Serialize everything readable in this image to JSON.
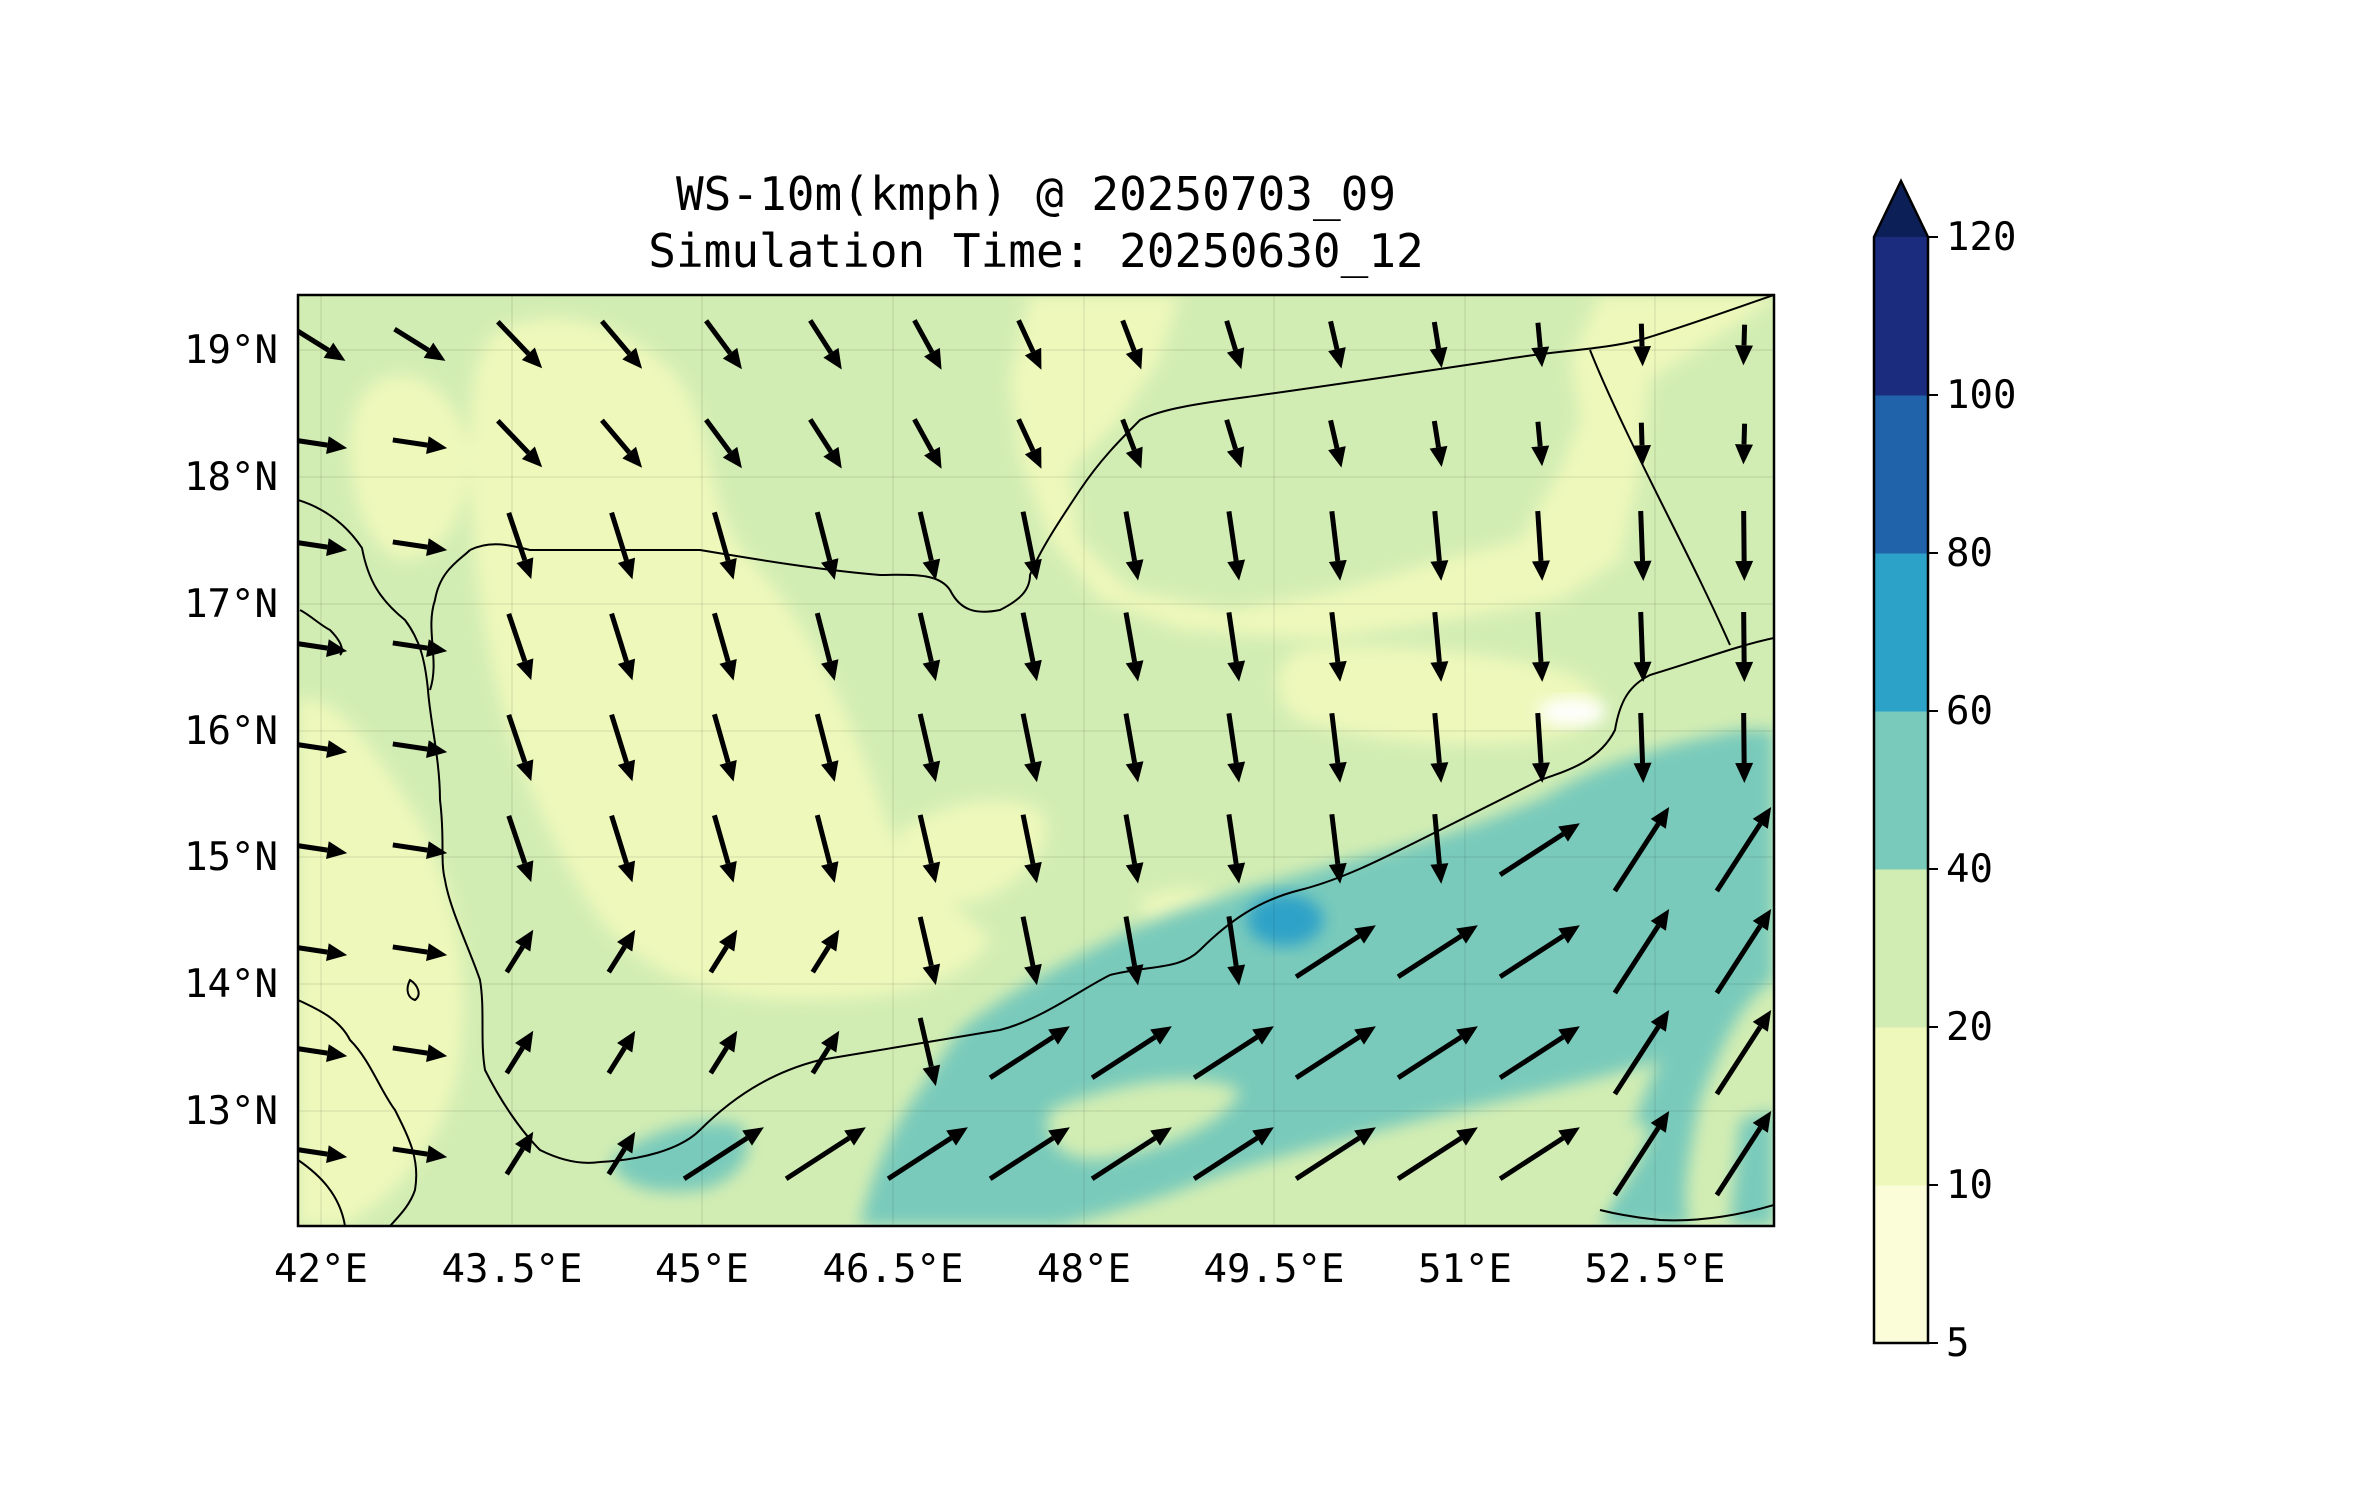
{
  "title": {
    "line1": "WS-10m(kmph) @ 20250703_09",
    "line2": "Simulation Time: 20250630_12"
  },
  "map": {
    "lon_range": [
      41.8,
      53.4
    ],
    "lat_range": [
      12.1,
      19.45
    ],
    "lon_ticks": [
      "42°E",
      "43.5°E",
      "45°E",
      "46.5°E",
      "48°E",
      "49.5°E",
      "51°E",
      "52.5°E"
    ],
    "lat_ticks": [
      "13°N",
      "14°N",
      "15°N",
      "16°N",
      "17°N",
      "18°N",
      "19°N"
    ],
    "gridlines": true
  },
  "colorbar": {
    "levels": [
      5,
      10,
      20,
      40,
      60,
      80,
      100,
      120
    ],
    "labels": [
      "5",
      "10",
      "20",
      "40",
      "60",
      "80",
      "100",
      "120"
    ],
    "colors": [
      "#fbfdd9",
      "#eef8bb",
      "#d2edb3",
      "#79cabb",
      "#2da2c8",
      "#2163ab",
      "#1b2b7e"
    ],
    "extend_color": "#0c1f56",
    "extend": "max"
  },
  "chart_data": {
    "type": "heatmap",
    "title": "WS-10m(kmph) @ 20250703_09",
    "subtitle": "Simulation Time: 20250630_12",
    "variable": "WS-10m(kmph)",
    "overlay": "wind vectors",
    "xlabel": "",
    "ylabel": "",
    "xlim": [
      41.8,
      53.4
    ],
    "ylim": [
      12.1,
      19.45
    ],
    "x_ticks": [
      "42°E",
      "43.5°E",
      "45°E",
      "46.5°E",
      "48°E",
      "49.5°E",
      "51°E",
      "52.5°E"
    ],
    "y_ticks": [
      "13°N",
      "14°N",
      "15°N",
      "16°N",
      "17°N",
      "18°N",
      "19°N"
    ],
    "colorbar_levels": [
      5,
      10,
      20,
      40,
      60,
      80,
      100,
      120
    ]
  }
}
